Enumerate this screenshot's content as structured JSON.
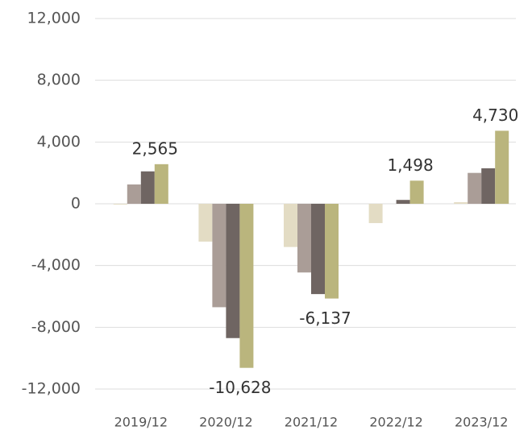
{
  "chart_data": {
    "type": "bar",
    "categories": [
      "2019/12",
      "2020/12",
      "2021/12",
      "2022/12",
      "2023/12"
    ],
    "series": [
      {
        "color": "#e3dcc4",
        "values": [
          -50,
          -2450,
          -2800,
          -1250,
          100
        ]
      },
      {
        "color": "#aa9d97",
        "values": [
          1250,
          -6700,
          -4450,
          0,
          2000
        ]
      },
      {
        "color": "#6f6562",
        "values": [
          2100,
          -8700,
          -5850,
          250,
          2300
        ]
      },
      {
        "color": "#bab57d",
        "values": [
          2565,
          -10628,
          -6137,
          1498,
          4730
        ],
        "value_labels": [
          "2,565",
          "-10,628",
          "-6,137",
          "1,498",
          "4,730"
        ]
      }
    ],
    "ylim": [
      -12000,
      12000
    ],
    "yticks": [
      {
        "value": -12000,
        "label": "-12,000"
      },
      {
        "value": -8000,
        "label": "-8,000"
      },
      {
        "value": -4000,
        "label": "-4,000"
      },
      0,
      {
        "value": 4000,
        "label": "4,000"
      },
      {
        "value": 8000,
        "label": "8,000"
      },
      {
        "value": 12000,
        "label": "12,000"
      }
    ],
    "grid": true
  }
}
